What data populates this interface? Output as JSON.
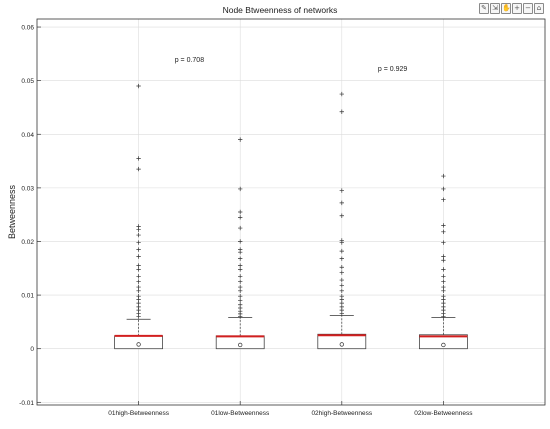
{
  "toolbar": {
    "icons": [
      "brush-icon",
      "export-icon",
      "pan-icon",
      "zoom-in-icon",
      "zoom-out-icon",
      "home-icon"
    ]
  },
  "chart_data": {
    "type": "box",
    "title": "Node Btweenness of networks",
    "xlabel": "",
    "ylabel": "Betweenness",
    "categories": [
      "01high-Betweenness",
      "01low-Betweenness",
      "02high-Betweenness",
      "02low-Betweenness"
    ],
    "ylim": [
      -0.0105,
      0.0615
    ],
    "yticks": [
      -0.01,
      0,
      0.01,
      0.02,
      0.03,
      0.04,
      0.05,
      0.06
    ],
    "ytick_labels": [
      "-0.01",
      "0",
      "0.01",
      "0.02",
      "0.03",
      "0.04",
      "0.05",
      "0.06"
    ],
    "grid": true,
    "boxes": [
      {
        "category": "01high-Betweenness",
        "min": 0,
        "q1": 0,
        "median": 0.0024,
        "q3": 0.0024,
        "max": 0.0055,
        "mean": 0.0008,
        "outliers": [
          0.049,
          0.0355,
          0.0335,
          0.0228,
          0.0222,
          0.0212,
          0.0198,
          0.0185,
          0.0172,
          0.0155,
          0.0148,
          0.0135,
          0.0125,
          0.0115,
          0.0108,
          0.0098,
          0.0092,
          0.0085,
          0.0078,
          0.0072,
          0.0066,
          0.006
        ]
      },
      {
        "category": "01low-Betweenness",
        "min": 0,
        "q1": 0,
        "median": 0.0023,
        "q3": 0.0024,
        "max": 0.0058,
        "mean": 0.0007,
        "outliers": [
          0.039,
          0.0298,
          0.0255,
          0.0245,
          0.0225,
          0.02,
          0.0185,
          0.018,
          0.0168,
          0.0155,
          0.0148,
          0.0135,
          0.0125,
          0.0115,
          0.0108,
          0.0098,
          0.009,
          0.0082,
          0.0076,
          0.007,
          0.0065,
          0.006
        ]
      },
      {
        "category": "02high-Betweenness",
        "min": 0,
        "q1": 0,
        "median": 0.0025,
        "q3": 0.0027,
        "max": 0.0062,
        "mean": 0.0008,
        "outliers": [
          0.0475,
          0.0442,
          0.0295,
          0.0272,
          0.0248,
          0.0202,
          0.0198,
          0.0182,
          0.0168,
          0.0152,
          0.0142,
          0.0128,
          0.0118,
          0.0108,
          0.0098,
          0.0092,
          0.0085,
          0.0078,
          0.0072,
          0.0066
        ]
      },
      {
        "category": "02low-Betweenness",
        "min": 0,
        "q1": 0,
        "median": 0.0023,
        "q3": 0.0026,
        "max": 0.0058,
        "mean": 0.0007,
        "outliers": [
          0.0322,
          0.0298,
          0.0278,
          0.023,
          0.0218,
          0.0198,
          0.0172,
          0.0165,
          0.0148,
          0.0135,
          0.0125,
          0.0115,
          0.0108,
          0.0098,
          0.0092,
          0.0085,
          0.0078,
          0.0072,
          0.0066,
          0.006
        ]
      }
    ],
    "annotations": [
      {
        "text": "p = 0.708",
        "x": 1.5,
        "y": 0.0535
      },
      {
        "text": "p = 0.929",
        "x": 3.5,
        "y": 0.0518
      }
    ]
  }
}
